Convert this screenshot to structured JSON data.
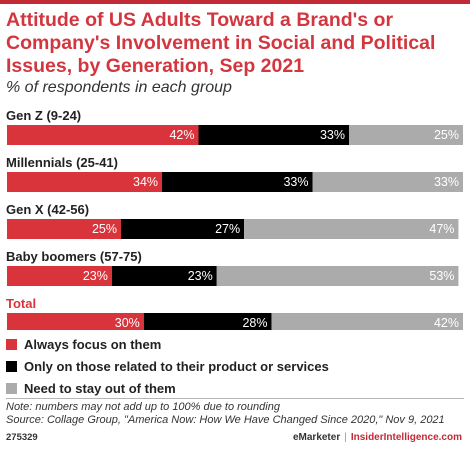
{
  "title": "Attitude of US Adults Toward a Brand's or Company's Involvement in Social and Political Issues, by Generation, Sep 2021",
  "subtitle": "% of respondents in each group",
  "chart_data": {
    "type": "bar",
    "orientation": "horizontal",
    "stacked": true,
    "percent": true,
    "categories": [
      "Gen Z (9-24)",
      "Millennials (25-41)",
      "Gen X (42-56)",
      "Baby boomers (57-75)",
      "Total"
    ],
    "highlight_category": "Total",
    "series": [
      {
        "name": "Always focus on them",
        "color": "#d9343c",
        "values": [
          42,
          34,
          25,
          23,
          30
        ]
      },
      {
        "name": "Only on those related to their product or services",
        "color": "#000000",
        "values": [
          33,
          33,
          27,
          23,
          28
        ]
      },
      {
        "name": "Need to stay out of them",
        "color": "#ababab",
        "values": [
          25,
          33,
          47,
          53,
          42
        ]
      }
    ],
    "xlim": [
      0,
      100
    ],
    "data_labels": "percent",
    "legend_position": "bottom-left"
  },
  "footnote": {
    "note": "Note: numbers may not add up to 100% due to rounding",
    "source": "Source: Collage Group, \"America Now: How We Have Changed Since 2020,\" Nov 9, 2021",
    "chart_id": "275329"
  },
  "brand": {
    "emarketer": "eMarketer",
    "separator": "|",
    "insider": "InsiderIntelligence.com"
  },
  "colors": {
    "accent": "#c22a36",
    "title": "#d2373f",
    "category_highlight": "#d9343c"
  }
}
